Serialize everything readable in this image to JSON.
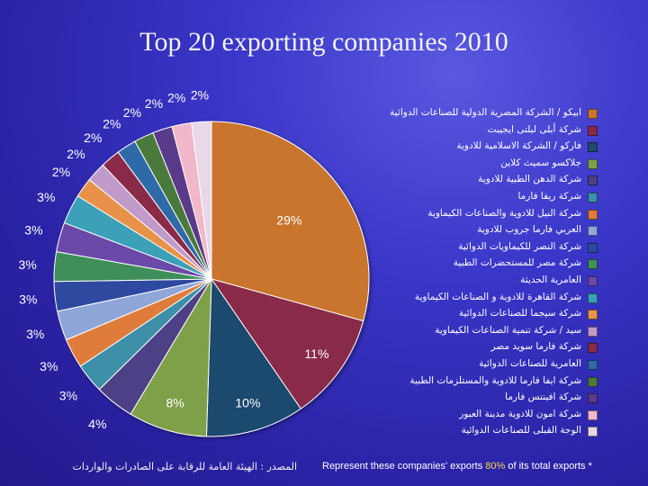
{
  "title": "Top 20 exporting companies 2010",
  "source_note": "المصدر : الهيئة العامة للرقابة على الصادرات والواردات",
  "footnote": {
    "prefix": "Represent these companies' exports ",
    "highlight": "80%",
    "suffix": " of its total exports  *"
  },
  "chart_data": {
    "type": "pie",
    "title": "Top 20 exporting companies 2010",
    "categories": [
      "ابيكو / الشركة المصرية الدولية للصناعات الدوائية",
      "شركة أبلى لبلتى ايجيبت",
      "فاركو / الشركة الاسلامية للادوية",
      "جلاكسو سميث كلاين",
      "شركة الدهن الطبية للادوية",
      "شركة ريفا فارما",
      "شركة النيل للادوية والصناعات الكيماوية",
      "العربي فارما جروب للادوية",
      "شركة النصر للكيماويات الدوائية",
      "شركة مصر للمستحضرات الطبية",
      "العامرية الحديثة",
      "شركة القاهرة للادوية و الصناعات الكيماوية",
      "شركة سيجما للصناعات الدوائية",
      "سيد / شركة تنمية الصناعات الكيماوية",
      "شركة فارما سويد مصر",
      "العامرية للصناعات الدوائية",
      "شركة ايفا فارما للادوية والمستلزمات الطبية",
      "شركة افينتس فارما",
      "شركة امون للادوية مدينة العبور",
      "الوجة القبلى للصناعات الدوائية"
    ],
    "values": [
      29,
      11,
      10,
      8,
      4,
      3,
      3,
      3,
      3,
      3,
      3,
      3,
      2,
      2,
      2,
      2,
      2,
      2,
      2,
      2
    ],
    "labels": [
      "29%",
      "11%",
      "10%",
      "8%",
      "4%",
      "3%",
      "3%",
      "3%",
      "3%",
      "3%",
      "3%",
      "3%",
      "2%",
      "2%",
      "2%",
      "2%",
      "2%",
      "2%",
      "2%",
      "2%"
    ],
    "colors": [
      "#c9752e",
      "#8a2a4a",
      "#1f4a6e",
      "#7ea04a",
      "#4e3f86",
      "#3d90a8",
      "#e07c3a",
      "#8ea6d8",
      "#2e4aa0",
      "#3f8f5a",
      "#6a4aa8",
      "#3aa0b8",
      "#e8924a",
      "#c09ac8",
      "#8a2a4a",
      "#2e6aa8",
      "#4a7a3a",
      "#5a3a8a",
      "#f0b8c8",
      "#e8d8e8"
    ],
    "legend_position": "right"
  }
}
